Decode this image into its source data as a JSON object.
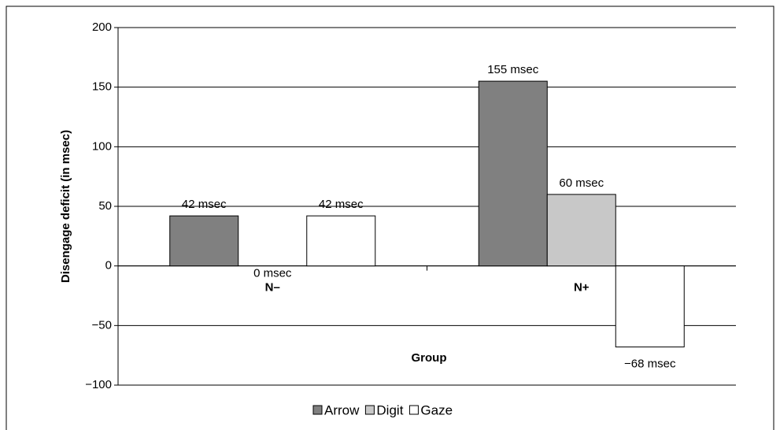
{
  "chart_data": {
    "type": "bar",
    "y_label": "Disengage deficit (in msec)",
    "x_label": "Group",
    "categories": [
      "N–",
      "N+"
    ],
    "series": [
      {
        "name": "Arrow",
        "color": "#808080",
        "values": [
          42,
          155
        ],
        "value_labels": [
          "42 msec",
          "155 msec"
        ]
      },
      {
        "name": "Digit",
        "color": "#c8c8c8",
        "values": [
          0,
          60
        ],
        "value_labels": [
          "0 msec",
          "60 msec"
        ]
      },
      {
        "name": "Gaze",
        "color": "#ffffff",
        "values": [
          42,
          -68
        ],
        "value_labels": [
          "42 msec",
          "−68 msec"
        ]
      }
    ],
    "ylim": [
      -100,
      200
    ],
    "yticks": [
      {
        "value": -100,
        "label": "−100"
      },
      {
        "value": -50,
        "label": "−50"
      },
      0,
      50,
      100,
      150,
      200
    ],
    "grid": true,
    "legend": "bottom"
  }
}
